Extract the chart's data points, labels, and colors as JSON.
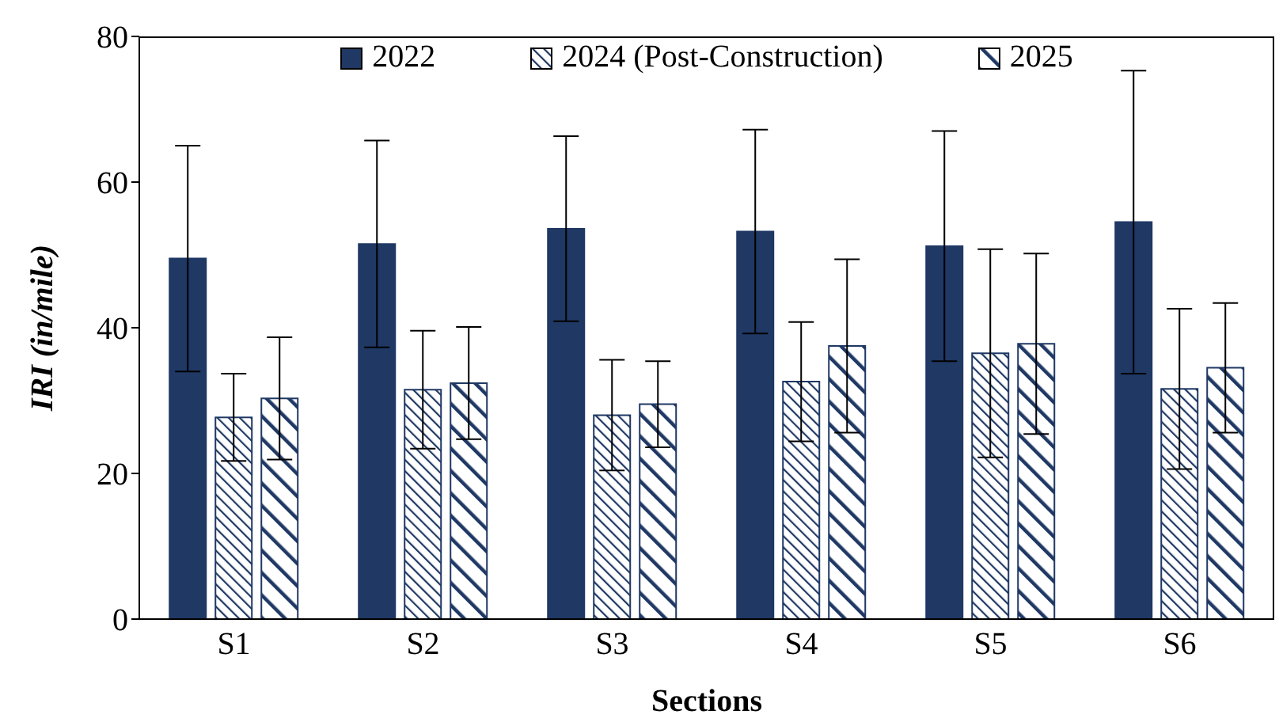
{
  "chart_data": {
    "type": "bar",
    "xlabel": "Sections",
    "ylabel": "IRI (in/mile)",
    "categories": [
      "S1",
      "S2",
      "S3",
      "S4",
      "S5",
      "S6"
    ],
    "series": [
      {
        "name": "2022",
        "color": "#1f3864",
        "values": [
          49.5,
          51.5,
          53.6,
          53.2,
          51.2,
          54.5
        ],
        "errors": [
          15.5,
          14.2,
          12.7,
          14,
          15.8,
          20.8
        ]
      },
      {
        "name": "2024 (Post-Construction)",
        "color": "#1f3864",
        "values": [
          27.7,
          31.5,
          28,
          32.6,
          36.5,
          31.6
        ],
        "errors": [
          6,
          8.1,
          7.6,
          8.2,
          14.3,
          11
        ]
      },
      {
        "name": "2025",
        "color": "#1f3864",
        "values": [
          30.3,
          32.4,
          29.5,
          37.5,
          37.8,
          34.5
        ],
        "errors": [
          8.4,
          7.7,
          5.9,
          11.9,
          12.4,
          8.9
        ]
      }
    ],
    "ylim": [
      0,
      80
    ],
    "yticks": [
      0,
      20,
      40,
      60,
      80
    ],
    "grid": false,
    "legend": "top"
  }
}
